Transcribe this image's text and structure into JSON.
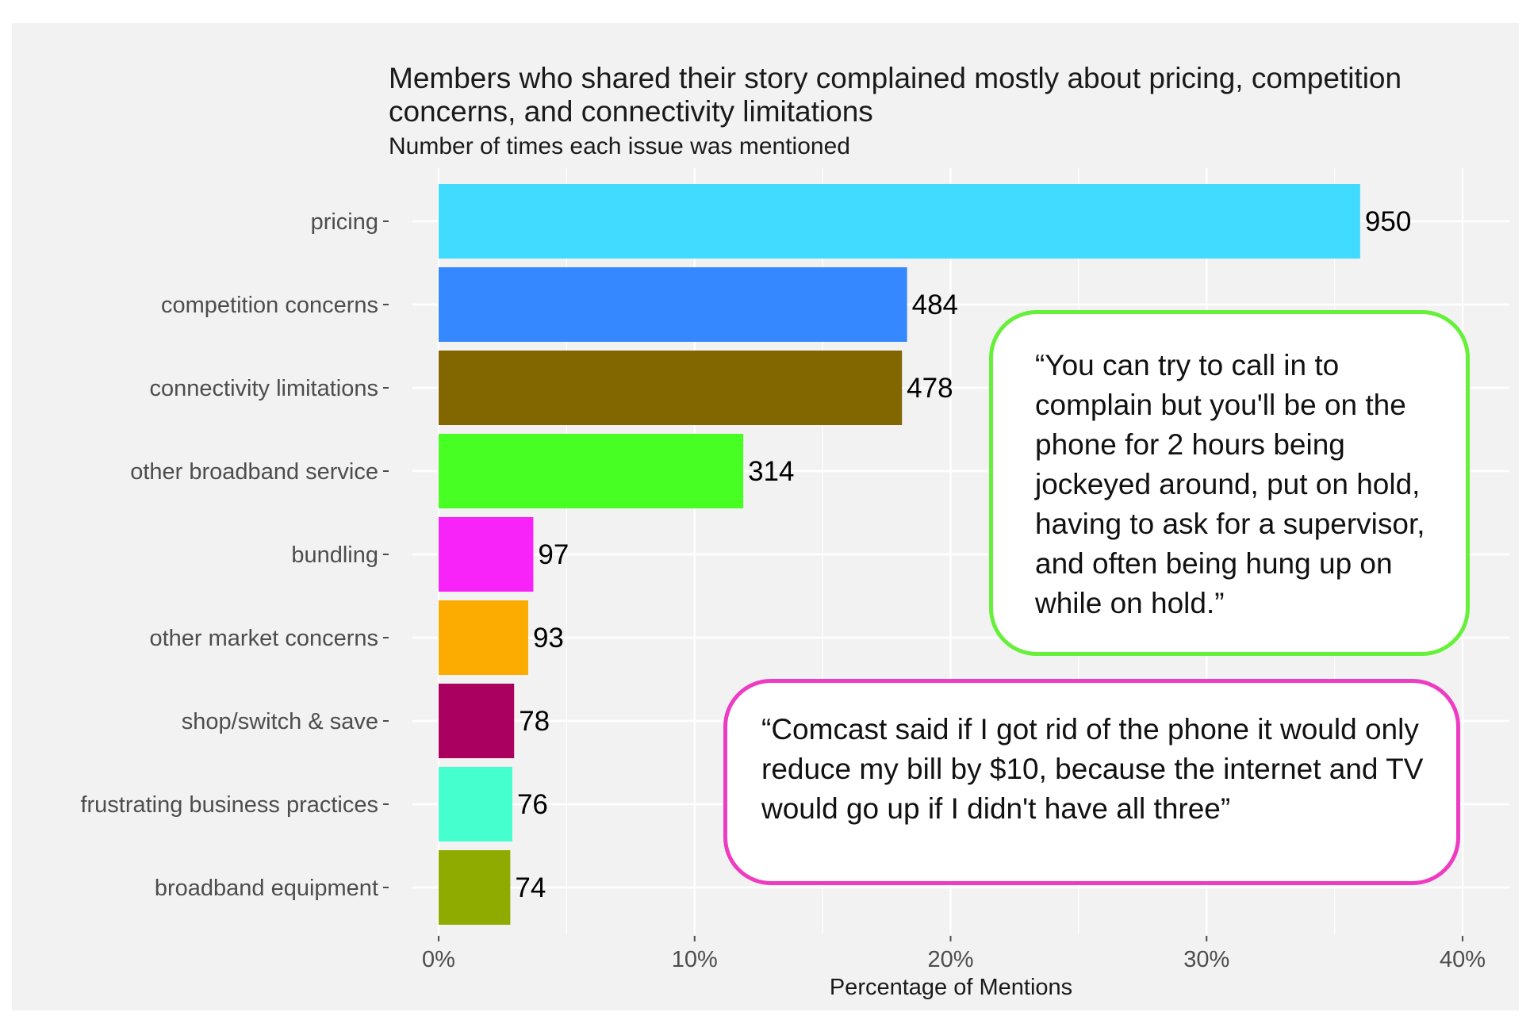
{
  "chart_data": {
    "type": "bar",
    "orientation": "horizontal",
    "title": "Members who shared their story complained mostly about pricing, competition concerns, and connectivity limitations",
    "subtitle": "Number of times each issue was mentioned",
    "xlabel": "Percentage of Mentions",
    "ylabel": "",
    "xlim": [
      0,
      40
    ],
    "x_ticks": [
      "0%",
      "10%",
      "20%",
      "30%",
      "40%"
    ],
    "x_tick_values": [
      0,
      10,
      20,
      30,
      40
    ],
    "grid": true,
    "categories": [
      "pricing",
      "competition concerns",
      "connectivity limitations",
      "other broadband service",
      "bundling",
      "other market concerns",
      "shop/switch & save",
      "frustrating business practices",
      "broadband equipment"
    ],
    "counts": [
      950,
      484,
      478,
      314,
      97,
      93,
      78,
      76,
      74
    ],
    "percentages": [
      36.0,
      18.3,
      18.1,
      11.9,
      3.7,
      3.5,
      2.95,
      2.88,
      2.8
    ],
    "colors": [
      "#41dbff",
      "#3588ff",
      "#826600",
      "#47ff23",
      "#f823f8",
      "#fcab00",
      "#aa0060",
      "#46ffce",
      "#8fab00"
    ]
  },
  "quotes": [
    {
      "text": "“You can try to call in to complain but you'll be on the phone for 2 hours being jockeyed around, put on hold, having to ask for a supervisor, and often being hung up on while on hold.”",
      "border_color": "#66f03a"
    },
    {
      "text": "“Comcast said if I got rid of the phone it would only reduce my bill by $10, because the internet and TV would go up if I didn't have all three”",
      "border_color": "#ee3cc2"
    }
  ]
}
